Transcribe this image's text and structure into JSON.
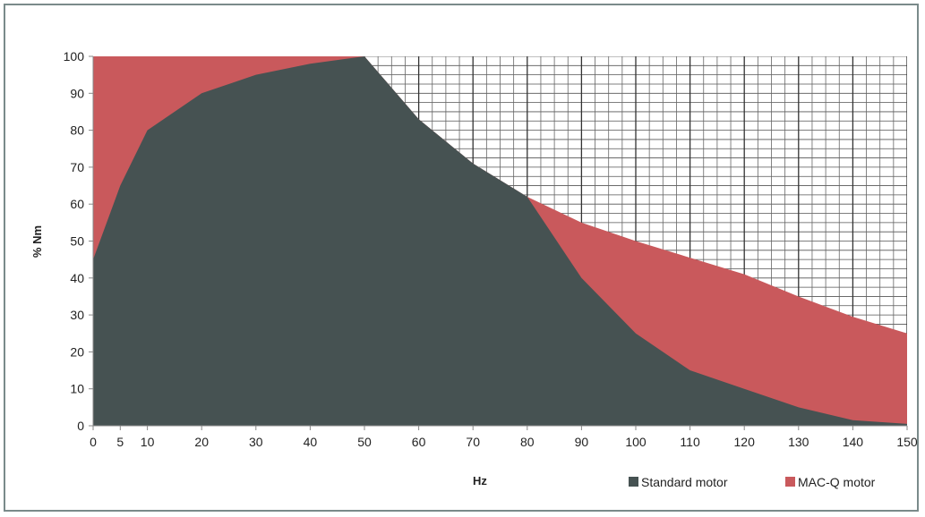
{
  "chart_data": {
    "type": "area",
    "xlabel": "Hz",
    "ylabel": "% Nm",
    "xlim": [
      0,
      150
    ],
    "ylim": [
      0,
      100
    ],
    "xticks": [
      0,
      5,
      10,
      20,
      30,
      40,
      50,
      60,
      70,
      80,
      90,
      100,
      110,
      120,
      130,
      140,
      150
    ],
    "yticks": [
      0,
      10,
      20,
      30,
      40,
      50,
      60,
      70,
      80,
      90,
      100
    ],
    "grid": "hatched region above MAC-Q curve (x 50–150)",
    "legend_position": "bottom-right",
    "series": [
      {
        "name": "Standard motor",
        "color": "#465252",
        "x": [
          0,
          5,
          10,
          20,
          30,
          40,
          50,
          60,
          70,
          80,
          90,
          100,
          110,
          120,
          130,
          140,
          150
        ],
        "values": [
          45,
          65,
          80,
          90,
          95,
          98,
          100,
          83,
          71,
          62,
          40,
          25,
          15,
          10,
          5,
          1.5,
          0.5
        ]
      },
      {
        "name": "MAC-Q motor",
        "color": "#c9595c",
        "x": [
          0,
          5,
          10,
          20,
          30,
          40,
          50,
          60,
          70,
          80,
          90,
          100,
          110,
          120,
          130,
          140,
          150
        ],
        "values": [
          100,
          100,
          100,
          100,
          100,
          100,
          100,
          83,
          71,
          62,
          55,
          50,
          45.5,
          41,
          35,
          29.5,
          25
        ]
      }
    ]
  }
}
